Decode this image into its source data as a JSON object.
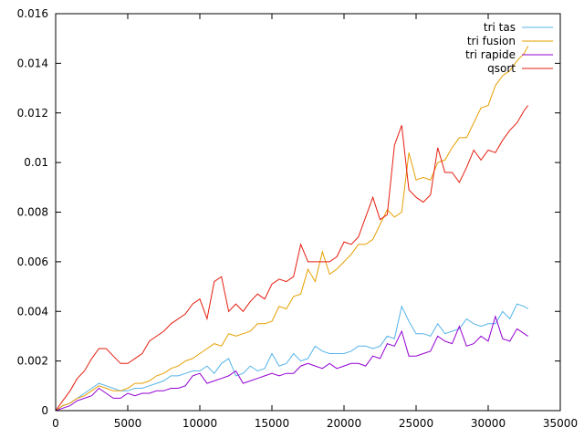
{
  "chart_data": {
    "type": "line",
    "title": "",
    "xlabel": "",
    "ylabel": "",
    "xlim": [
      0,
      35000
    ],
    "ylim": [
      0,
      0.016
    ],
    "x_ticks": [
      0,
      5000,
      10000,
      15000,
      20000,
      25000,
      30000,
      35000
    ],
    "x_tick_labels": [
      "0",
      "5000",
      "10000",
      "15000",
      "20000",
      "25000",
      "30000",
      "35000"
    ],
    "y_ticks": [
      0,
      0.002,
      0.004,
      0.006,
      0.008,
      0.01,
      0.012,
      0.014,
      0.016
    ],
    "y_tick_labels": [
      "0",
      "0.002",
      "0.004",
      "0.006",
      "0.008",
      "0.01",
      "0.012",
      "0.014",
      "0.016"
    ],
    "grid": false,
    "legend_position": "top-right",
    "x": [
      0,
      500,
      1000,
      1500,
      2000,
      2500,
      3000,
      3500,
      4000,
      4500,
      5000,
      5500,
      6000,
      6500,
      7000,
      7500,
      8000,
      8500,
      9000,
      9500,
      10000,
      10500,
      11000,
      11500,
      12000,
      12500,
      13000,
      13500,
      14000,
      14500,
      15000,
      15500,
      16000,
      16500,
      17000,
      17500,
      18000,
      18500,
      19000,
      19500,
      20000,
      20500,
      21000,
      21500,
      22000,
      22500,
      23000,
      23500,
      24000,
      24500,
      25000,
      25500,
      26000,
      26500,
      27000,
      27500,
      28000,
      28500,
      29000,
      29500,
      30000,
      30500,
      31000,
      31500,
      32000,
      32500,
      32768
    ],
    "series": [
      {
        "name": "tri tas",
        "color": "#56b4e9",
        "values": [
          0,
          0.0002,
          0.0003,
          0.0005,
          0.0007,
          0.0009,
          0.0011,
          0.001,
          0.0009,
          0.0008,
          0.0008,
          0.0009,
          0.0009,
          0.001,
          0.0011,
          0.0012,
          0.0014,
          0.0014,
          0.0015,
          0.0016,
          0.0016,
          0.0018,
          0.0015,
          0.0019,
          0.0021,
          0.0014,
          0.0015,
          0.0018,
          0.0016,
          0.0017,
          0.0023,
          0.0018,
          0.0019,
          0.0023,
          0.002,
          0.0021,
          0.0026,
          0.0024,
          0.0023,
          0.0023,
          0.0023,
          0.0024,
          0.0026,
          0.0026,
          0.0025,
          0.0026,
          0.003,
          0.0029,
          0.0042,
          0.0036,
          0.0031,
          0.0031,
          0.003,
          0.0035,
          0.0031,
          0.0032,
          0.0033,
          0.0037,
          0.0035,
          0.0034,
          0.0035,
          0.0035,
          0.004,
          0.0037,
          0.0043,
          0.0042,
          0.0041
        ]
      },
      {
        "name": "tri fusion",
        "color": "#e69f00",
        "values": [
          0,
          0.0002,
          0.0003,
          0.0005,
          0.0006,
          0.0008,
          0.001,
          0.0009,
          0.0008,
          0.0008,
          0.0009,
          0.0011,
          0.0011,
          0.0012,
          0.0014,
          0.0015,
          0.0017,
          0.0018,
          0.002,
          0.0021,
          0.0023,
          0.0025,
          0.0027,
          0.0026,
          0.0031,
          0.003,
          0.0031,
          0.0032,
          0.0035,
          0.0035,
          0.0036,
          0.0042,
          0.0041,
          0.0046,
          0.0047,
          0.0057,
          0.0052,
          0.0064,
          0.0055,
          0.0057,
          0.006,
          0.0063,
          0.0067,
          0.0067,
          0.0069,
          0.0075,
          0.0081,
          0.0078,
          0.008,
          0.0104,
          0.0093,
          0.0094,
          0.0093,
          0.01,
          0.0101,
          0.0106,
          0.011,
          0.011,
          0.0116,
          0.0122,
          0.0123,
          0.0131,
          0.0135,
          0.0137,
          0.0141,
          0.0144,
          0.0147
        ]
      },
      {
        "name": "tri rapide",
        "color": "#9400d3",
        "values": [
          0,
          0.0001,
          0.0002,
          0.0004,
          0.0005,
          0.0006,
          0.0009,
          0.0007,
          0.0005,
          0.0005,
          0.0007,
          0.0006,
          0.0007,
          0.0007,
          0.0008,
          0.0008,
          0.0009,
          0.0009,
          0.001,
          0.0014,
          0.0015,
          0.0011,
          0.0012,
          0.0013,
          0.0014,
          0.0016,
          0.0011,
          0.0012,
          0.0013,
          0.0014,
          0.0015,
          0.0014,
          0.0015,
          0.0015,
          0.0018,
          0.0019,
          0.0018,
          0.0017,
          0.0019,
          0.0017,
          0.0018,
          0.0019,
          0.0019,
          0.0018,
          0.0022,
          0.0021,
          0.0027,
          0.0026,
          0.0032,
          0.0022,
          0.0022,
          0.0023,
          0.0024,
          0.003,
          0.0028,
          0.0027,
          0.0034,
          0.0026,
          0.0027,
          0.003,
          0.0028,
          0.0038,
          0.0029,
          0.0028,
          0.0033,
          0.0031,
          0.003
        ]
      },
      {
        "name": "qsort",
        "color": "#e51e10",
        "values": [
          0,
          0.0004,
          0.0008,
          0.0013,
          0.0016,
          0.0021,
          0.0025,
          0.0025,
          0.0022,
          0.0019,
          0.0019,
          0.0021,
          0.0023,
          0.0028,
          0.003,
          0.0032,
          0.0035,
          0.0037,
          0.0039,
          0.0043,
          0.0045,
          0.0037,
          0.0052,
          0.0054,
          0.004,
          0.0043,
          0.004,
          0.0044,
          0.0047,
          0.0045,
          0.0051,
          0.0053,
          0.0052,
          0.0054,
          0.0067,
          0.006,
          0.006,
          0.006,
          0.006,
          0.0062,
          0.0068,
          0.0067,
          0.007,
          0.0078,
          0.0086,
          0.0077,
          0.0079,
          0.0107,
          0.0115,
          0.0089,
          0.0086,
          0.0084,
          0.0087,
          0.0106,
          0.0096,
          0.0096,
          0.0092,
          0.0098,
          0.0105,
          0.0101,
          0.0105,
          0.0104,
          0.0109,
          0.0113,
          0.0116,
          0.0121,
          0.0123
        ]
      }
    ]
  }
}
